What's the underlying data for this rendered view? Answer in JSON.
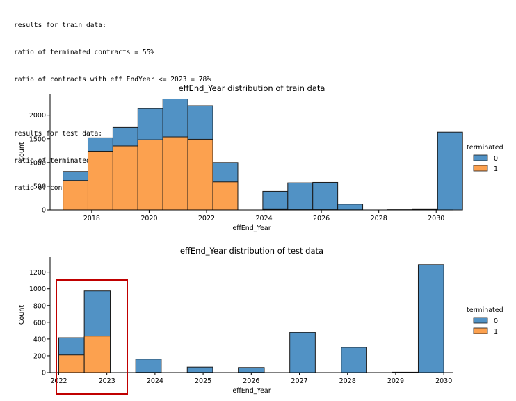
{
  "console": {
    "lines": [
      "results for train data:",
      "ratio of terminated contracts = 55%",
      "ratio of contracts with eff_EndYear <= 2023 = 78%",
      "",
      "results for test data:",
      "ratio of terminated contracts = 17%",
      "ratio of contracts with eff_EndYear <= 2023 = 37%"
    ]
  },
  "colors": {
    "series_0": "#5192c5",
    "series_1": "#fca14f",
    "highlight": "#c00000"
  },
  "chart_data": [
    {
      "type": "bar",
      "stacked": "layered",
      "title": "effEnd_Year distribution of train data",
      "xlabel": "effEnd_Year",
      "ylabel": "Count",
      "xlim": [
        2016.55,
        2030.6
      ],
      "ylim": [
        0,
        2450
      ],
      "xticks": [
        "2018",
        "2020",
        "2022",
        "2024",
        "2026",
        "2028",
        "2030"
      ],
      "yticks": [
        "0",
        "500",
        "1000",
        "1500",
        "2000"
      ],
      "bins": [
        {
          "x0": 2017.0,
          "x1": 2017.87,
          "total": 810,
          "terminated": 620
        },
        {
          "x0": 2017.87,
          "x1": 2018.74,
          "total": 1520,
          "terminated": 1240
        },
        {
          "x0": 2018.74,
          "x1": 2019.61,
          "total": 1740,
          "terminated": 1350
        },
        {
          "x0": 2019.61,
          "x1": 2020.48,
          "total": 2140,
          "terminated": 1480
        },
        {
          "x0": 2020.48,
          "x1": 2021.35,
          "total": 2340,
          "terminated": 1540
        },
        {
          "x0": 2021.35,
          "x1": 2022.22,
          "total": 2200,
          "terminated": 1490
        },
        {
          "x0": 2022.22,
          "x1": 2023.09,
          "total": 1000,
          "terminated": 590
        },
        {
          "x0": 2023.96,
          "x1": 2024.83,
          "total": 390,
          "terminated": 10
        },
        {
          "x0": 2024.83,
          "x1": 2025.7,
          "total": 570,
          "terminated": 5
        },
        {
          "x0": 2025.7,
          "x1": 2026.57,
          "total": 580,
          "terminated": 5
        },
        {
          "x0": 2026.57,
          "x1": 2027.44,
          "total": 120,
          "terminated": 2
        },
        {
          "x0": 2028.31,
          "x1": 2029.18,
          "total": 5,
          "terminated": 0
        },
        {
          "x0": 2029.18,
          "x1": 2030.05,
          "total": 10,
          "terminated": 0
        },
        {
          "x0": 2030.05,
          "x1": 2030.92,
          "total": 1640,
          "terminated": 0
        }
      ],
      "legend": {
        "title": "terminated",
        "entries": [
          "0",
          "1"
        ],
        "position": "right"
      }
    },
    {
      "type": "bar",
      "stacked": "layered",
      "title": "effEnd_Year distribution of test data",
      "xlabel": "effEnd_Year",
      "ylabel": "Count",
      "xlim": [
        2021.82,
        2030.2
      ],
      "ylim": [
        0,
        1380
      ],
      "xticks": [
        "2022",
        "2023",
        "2024",
        "2025",
        "2026",
        "2027",
        "2028",
        "2029",
        "2030"
      ],
      "yticks": [
        "0",
        "200",
        "400",
        "600",
        "800",
        "1000",
        "1200"
      ],
      "bins": [
        {
          "x0": 2022.0,
          "x1": 2022.53,
          "total": 415,
          "terminated": 210
        },
        {
          "x0": 2022.53,
          "x1": 2023.07,
          "total": 975,
          "terminated": 435
        },
        {
          "x0": 2023.6,
          "x1": 2024.13,
          "total": 160,
          "terminated": 2
        },
        {
          "x0": 2024.67,
          "x1": 2025.2,
          "total": 65,
          "terminated": 2
        },
        {
          "x0": 2025.73,
          "x1": 2026.27,
          "total": 60,
          "terminated": 2
        },
        {
          "x0": 2026.8,
          "x1": 2027.33,
          "total": 480,
          "terminated": 0
        },
        {
          "x0": 2027.87,
          "x1": 2028.4,
          "total": 300,
          "terminated": 0
        },
        {
          "x0": 2028.93,
          "x1": 2029.47,
          "total": 5,
          "terminated": 0
        },
        {
          "x0": 2029.47,
          "x1": 2030.0,
          "total": 1290,
          "terminated": 0
        }
      ],
      "legend": {
        "title": "terminated",
        "entries": [
          "0",
          "1"
        ],
        "position": "right"
      },
      "highlight": {
        "x0": 2021.82,
        "x1": 2023.3
      }
    }
  ]
}
